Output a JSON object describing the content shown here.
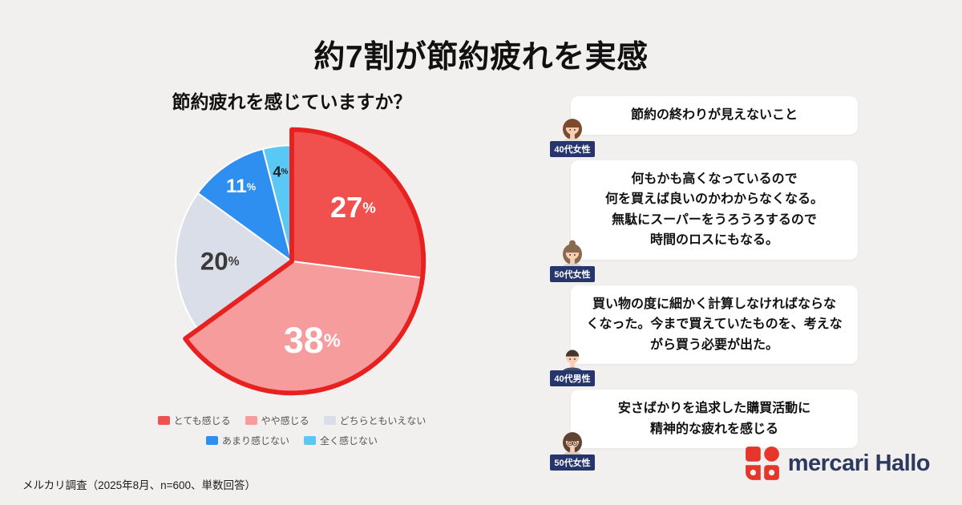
{
  "page": {
    "title": "約7割が節約疲れを実感",
    "background_color": "#f2f0ee",
    "source_note": "メルカリ調査（2025年8月、n=600、単数回答）"
  },
  "chart_data": {
    "type": "pie",
    "title": "節約疲れを感じていますか？",
    "unit": "%",
    "direction": "clockwise",
    "start_angle_deg": 0,
    "legend_position": "bottom",
    "emphasis_outline_color": "#e7211f",
    "emphasis_note": "とても感じる＋やや感じる（65%＝約7割）を赤枠で強調",
    "slices": [
      {
        "label": "とても感じる",
        "value": 27,
        "color": "#f0514e",
        "text_color": "#ffffff",
        "emphasized": true
      },
      {
        "label": "やや感じる",
        "value": 38,
        "color": "#f69c9c",
        "text_color": "#ffffff",
        "emphasized": true
      },
      {
        "label": "どちらともいえない",
        "value": 20,
        "color": "#d9dee8",
        "text_color": "#3a3a3a",
        "emphasized": false
      },
      {
        "label": "あまり感じない",
        "value": 11,
        "color": "#2e8ff0",
        "text_color": "#ffffff",
        "emphasized": false
      },
      {
        "label": "全く感じない",
        "value": 4,
        "color": "#5ac8f5",
        "text_color": "#222222",
        "emphasized": false
      }
    ]
  },
  "testimonials": [
    {
      "persona": "40代女性",
      "lines": [
        "節約の終わりが見えないこと"
      ],
      "avatar": {
        "style": "female",
        "hair": "#7c4a2c",
        "outfit": "#e3ddd6"
      }
    },
    {
      "persona": "50代女性",
      "lines": [
        "何もかも高くなっているので",
        "何を買えば良いのかわからなくなる。",
        "無駄にスーパーをうろうろするので",
        "時間のロスにもなる。"
      ],
      "avatar": {
        "style": "bun",
        "hair": "#8a6a4f",
        "outfit": "#cdd6d5"
      }
    },
    {
      "persona": "40代男性",
      "lines": [
        "買い物の度に細かく計算しなければならな",
        "くなった。今まで買えていたものを、考えな",
        "がら買う必要が出た。"
      ],
      "avatar": {
        "style": "male",
        "hair": "#46372c",
        "outfit": "#44506b"
      }
    },
    {
      "persona": "50代女性",
      "lines": [
        "安さばかりを追求した購買活動に",
        "精神的な疲れを感じる"
      ],
      "avatar": {
        "style": "female",
        "hair": "#5d4330",
        "outfit": "#d8cab6",
        "glasses": true
      }
    }
  ],
  "persona_badge_color": "#26356b",
  "logo": {
    "text": "mercari Hallo",
    "mark_color": "#e5362c",
    "text_color": "#2d3a5e"
  }
}
